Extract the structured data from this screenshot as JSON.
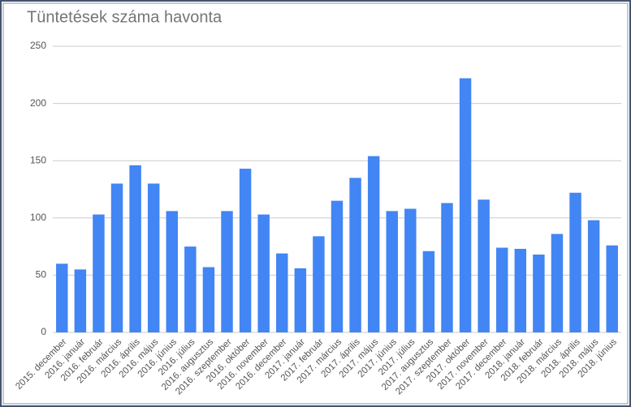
{
  "chart_data": {
    "type": "bar",
    "title": "Tüntetések száma havonta",
    "categories": [
      "2015. december",
      "2016. január",
      "2016. február",
      "2016. március",
      "2016. április",
      "2016. május",
      "2016. június",
      "2016. július",
      "2016. augusztus",
      "2016. szeptember",
      "2016. október",
      "2016. november",
      "2016. december",
      "2017. január",
      "2017. február",
      "2017. március",
      "2017. április",
      "2017. május",
      "2017. június",
      "2017. július",
      "2017. augusztus",
      "2017. szeptember",
      "2017. október",
      "2017. november",
      "2017. december",
      "2018. január",
      "2018. február",
      "2018. március",
      "2018. április",
      "2018. május",
      "2018. június"
    ],
    "values": [
      60,
      55,
      103,
      130,
      146,
      130,
      106,
      75,
      57,
      106,
      143,
      103,
      69,
      56,
      84,
      115,
      135,
      154,
      106,
      108,
      71,
      113,
      222,
      116,
      74,
      73,
      68,
      86,
      122,
      98,
      76
    ],
    "color": "#4285f4",
    "ylim": [
      0,
      250
    ],
    "yticks": [
      0,
      50,
      100,
      150,
      200,
      250
    ],
    "grid": true
  }
}
